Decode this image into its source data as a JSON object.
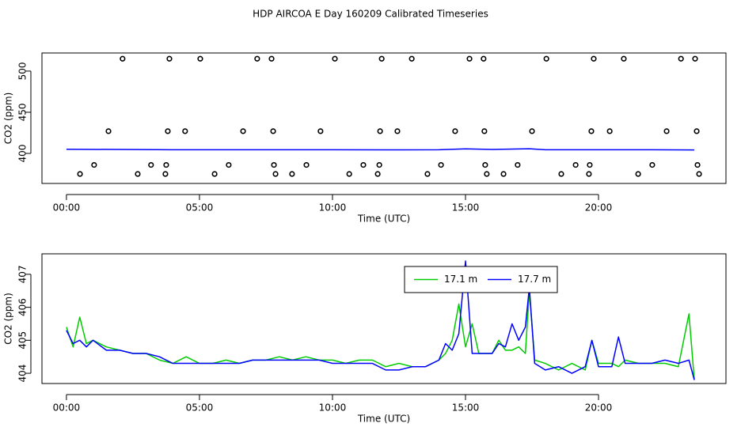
{
  "title": "HDP AIRCOA E  Day 160209  Calibrated Timeseries",
  "chart_data": [
    {
      "type": "line",
      "xlabel": "Time (UTC)",
      "ylabel": "CO2 (ppm)",
      "xlim": [
        -0.92,
        24.79
      ],
      "ylim": [
        363.5,
        522
      ],
      "xticks": [
        {
          "value": 0,
          "label": "00:00"
        },
        {
          "value": 5,
          "label": "05:00"
        },
        {
          "value": 10,
          "label": "10:00"
        },
        {
          "value": 15,
          "label": "15:00"
        },
        {
          "value": 20,
          "label": "20:00"
        }
      ],
      "yticks": [
        400,
        450,
        500
      ],
      "series": [
        {
          "mode": "points",
          "color": "#000000",
          "x": [
            2.11,
            3.87,
            5.03,
            7.17,
            7.71,
            10.09,
            11.85,
            12.98,
            15.15,
            15.68,
            18.04,
            19.82,
            20.95,
            23.1,
            23.63,
            1.58,
            3.81,
            4.46,
            6.64,
            7.77,
            9.55,
            11.79,
            12.44,
            14.61,
            15.71,
            17.5,
            19.73,
            20.42,
            22.56,
            23.69,
            1.04,
            3.18,
            3.75,
            6.1,
            7.8,
            9.02,
            11.16,
            11.76,
            14.08,
            15.74,
            16.96,
            19.14,
            19.67,
            22.02,
            23.72,
            0.51,
            2.68,
            3.72,
            5.57,
            7.86,
            8.48,
            10.63,
            11.7,
            13.57,
            15.8,
            16.43,
            18.6,
            19.64,
            21.49,
            23.78
          ],
          "values": [
            515,
            515,
            515,
            515,
            515,
            515,
            515,
            515,
            515,
            515,
            515,
            515,
            515,
            515,
            515,
            427,
            427,
            427,
            427,
            427,
            427,
            427,
            427,
            427,
            427,
            427,
            427,
            427,
            427,
            427,
            386,
            386,
            386,
            386,
            386,
            386,
            386,
            386,
            386,
            386,
            386,
            386,
            386,
            386,
            386,
            375,
            375,
            375,
            375,
            375,
            375,
            375,
            375,
            375,
            375,
            375,
            375,
            375,
            375,
            375
          ]
        },
        {
          "mode": "line",
          "color": "#0000ff",
          "x": [
            0,
            2,
            4,
            6,
            8,
            10,
            12,
            14,
            15,
            16,
            17.4,
            18,
            20,
            22,
            23.6
          ],
          "values": [
            405,
            404.8,
            404.5,
            404.4,
            404.5,
            404.4,
            404.3,
            404.5,
            405.5,
            404.8,
            405.6,
            404.4,
            404.5,
            404.5,
            404.2
          ]
        }
      ]
    },
    {
      "type": "line",
      "xlabel": "Time (UTC)",
      "ylabel": "CO2 (ppm)",
      "xlim": [
        -0.92,
        24.79
      ],
      "ylim": [
        403.69,
        407.62
      ],
      "xticks": [
        {
          "value": 0,
          "label": "00:00"
        },
        {
          "value": 5,
          "label": "05:00"
        },
        {
          "value": 10,
          "label": "10:00"
        },
        {
          "value": 15,
          "label": "15:00"
        },
        {
          "value": 20,
          "label": "20:00"
        }
      ],
      "yticks": [
        404,
        405,
        406,
        407
      ],
      "legend": "top",
      "x": [
        0,
        0.25,
        0.5,
        0.75,
        1,
        1.5,
        2,
        2.5,
        3,
        3.5,
        4,
        4.5,
        5,
        5.5,
        6,
        6.5,
        7,
        7.5,
        8,
        8.5,
        9,
        9.5,
        10,
        10.5,
        11,
        11.5,
        12,
        12.5,
        13,
        13.5,
        14,
        14.25,
        14.5,
        14.75,
        15,
        15.25,
        15.5,
        16,
        16.25,
        16.5,
        16.75,
        17,
        17.25,
        17.4,
        17.6,
        18,
        18.5,
        19,
        19.5,
        19.75,
        20,
        20.5,
        20.75,
        21,
        21.5,
        22,
        22.5,
        23,
        23.4,
        23.6
      ],
      "series": [
        {
          "name": "17.1 m",
          "mode": "line",
          "color": "#00cc00",
          "values": [
            405.4,
            404.8,
            405.7,
            404.9,
            405.0,
            404.8,
            404.7,
            404.6,
            404.6,
            404.4,
            404.3,
            404.5,
            404.3,
            404.3,
            404.4,
            404.3,
            404.4,
            404.4,
            404.5,
            404.4,
            404.5,
            404.4,
            404.4,
            404.3,
            404.4,
            404.4,
            404.2,
            404.3,
            404.2,
            404.2,
            404.4,
            404.6,
            405.0,
            406.1,
            404.8,
            405.5,
            404.6,
            404.6,
            405.0,
            404.7,
            404.7,
            404.8,
            404.6,
            406.5,
            404.4,
            404.3,
            404.1,
            404.3,
            404.1,
            405.0,
            404.3,
            404.3,
            404.2,
            404.4,
            404.3,
            404.3,
            404.3,
            404.2,
            405.8,
            403.8
          ]
        },
        {
          "name": "17.7 m",
          "mode": "line",
          "color": "#0000ff",
          "values": [
            405.3,
            404.9,
            405.0,
            404.8,
            405.0,
            404.7,
            404.7,
            404.6,
            404.6,
            404.5,
            404.3,
            404.3,
            404.3,
            404.3,
            404.3,
            404.3,
            404.4,
            404.4,
            404.4,
            404.4,
            404.4,
            404.4,
            404.3,
            404.3,
            404.3,
            404.3,
            404.1,
            404.1,
            404.2,
            404.2,
            404.4,
            404.9,
            404.7,
            405.2,
            407.4,
            404.6,
            404.6,
            404.6,
            404.9,
            404.8,
            405.5,
            405.0,
            405.4,
            406.6,
            404.3,
            404.1,
            404.2,
            404.0,
            404.2,
            405.0,
            404.2,
            404.2,
            405.1,
            404.3,
            404.3,
            404.3,
            404.4,
            404.3,
            404.4,
            403.8
          ]
        }
      ]
    }
  ]
}
